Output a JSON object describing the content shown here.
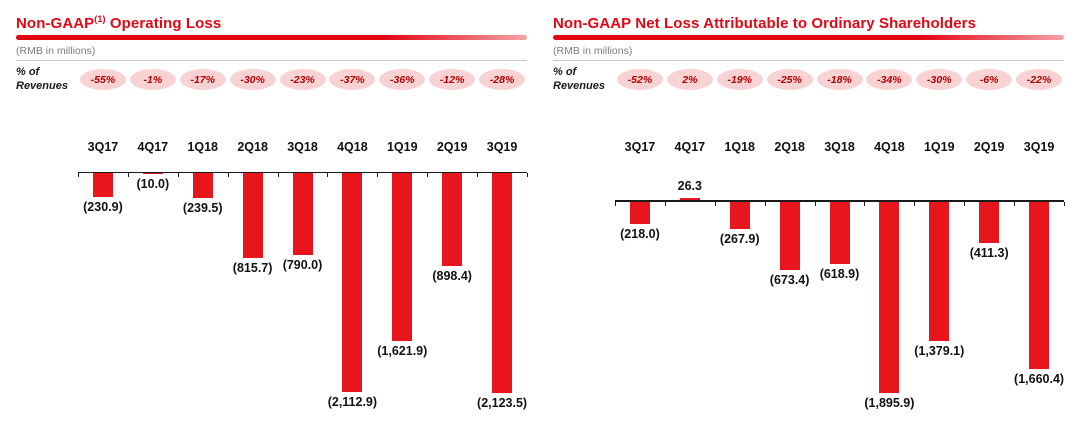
{
  "page": {
    "background": "#ffffff"
  },
  "colors": {
    "title_red": "#e30613",
    "bar_red": "#e8151d",
    "badge_bg": "#f9d3d3",
    "badge_text": "#b30000",
    "subtitle_gray": "#7f7f7f",
    "axis_black": "#1a1a1a"
  },
  "charts": [
    {
      "title_main": "Non-GAAP",
      "title_sup": "(1)",
      "title_rest": " Operating Loss",
      "subtitle": "(RMB in millions)",
      "pct_label_line1": "% of",
      "pct_label_line2": "Revenues",
      "pct_revenues": [
        "-55%",
        "-1%",
        "-17%",
        "-30%",
        "-23%",
        "-37%",
        "-36%",
        "-12%",
        "-28%"
      ],
      "chart_data": {
        "type": "bar",
        "title": "Non-GAAP Operating Loss",
        "ylabel": "RMB in millions",
        "categories": [
          "3Q17",
          "4Q17",
          "1Q18",
          "2Q18",
          "3Q18",
          "4Q18",
          "1Q19",
          "2Q19",
          "3Q19"
        ],
        "values": [
          -230.9,
          -10.0,
          -239.5,
          -815.7,
          -790.0,
          -2112.9,
          -1621.9,
          -898.4,
          -2123.5
        ],
        "labels": [
          "(230.9)",
          "(10.0)",
          "(239.5)",
          "(815.7)",
          "(790.0)",
          "(2,112.9)",
          "(1,621.9)",
          "(898.4)",
          "(2,123.5)"
        ],
        "pct_of_revenues": [
          "-55%",
          "-1%",
          "-17%",
          "-30%",
          "-23%",
          "-37%",
          "-36%",
          "-12%",
          "-28%"
        ],
        "ylim": [
          -2200,
          0
        ],
        "grid": false,
        "legend": "none",
        "bar_color": "#e8151d"
      }
    },
    {
      "title_main": "Non-GAAP Net Loss Attributable to Ordinary Shareholders",
      "title_sup": "",
      "title_rest": "",
      "subtitle": "(RMB in millions)",
      "pct_label_line1": "% of",
      "pct_label_line2": "Revenues",
      "pct_revenues": [
        "-52%",
        "2%",
        "-19%",
        "-25%",
        "-18%",
        "-34%",
        "-30%",
        "-6%",
        "-22%"
      ],
      "chart_data": {
        "type": "bar",
        "title": "Non-GAAP Net Loss Attributable to Ordinary Shareholders",
        "ylabel": "RMB in millions",
        "categories": [
          "3Q17",
          "4Q17",
          "1Q18",
          "2Q18",
          "3Q18",
          "4Q18",
          "1Q19",
          "2Q19",
          "3Q19"
        ],
        "values": [
          -218.0,
          26.3,
          -267.9,
          -673.4,
          -618.9,
          -1895.9,
          -1379.1,
          -411.3,
          -1660.4
        ],
        "labels": [
          "(218.0)",
          "26.3",
          "(267.9)",
          "(673.4)",
          "(618.9)",
          "(1,895.9)",
          "(1,379.1)",
          "(411.3)",
          "(1,660.4)"
        ],
        "pct_of_revenues": [
          "-52%",
          "2%",
          "-19%",
          "-25%",
          "-18%",
          "-34%",
          "-30%",
          "-6%",
          "-22%"
        ],
        "ylim": [
          -2000,
          100
        ],
        "grid": false,
        "legend": "none",
        "bar_color": "#e8151d"
      }
    }
  ]
}
